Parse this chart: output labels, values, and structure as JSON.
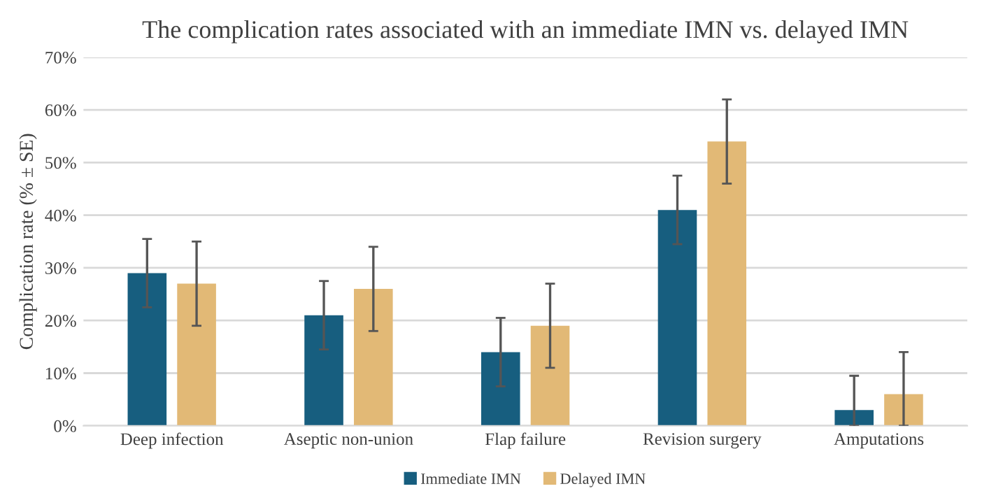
{
  "chart_data": {
    "type": "bar",
    "title": "The complication rates associated with an immediate IMN vs. delayed IMN",
    "ylabel": "Complication rate (% ± SE)",
    "categories": [
      "Deep infection",
      "Aseptic non-union",
      "Flap failure",
      "Revision surgery",
      "Amputations"
    ],
    "series": [
      {
        "name": "Immediate IMN",
        "color": "#175e7f",
        "values": [
          29,
          21,
          14,
          41,
          3
        ],
        "errors": [
          6.5,
          6.5,
          6.5,
          6.5,
          [
            0,
            9.5
          ]
        ]
      },
      {
        "name": "Delayed IMN",
        "color": "#e2b976",
        "values": [
          27,
          26,
          19,
          54,
          6
        ],
        "errors": [
          8,
          8,
          8,
          8,
          [
            0,
            14
          ]
        ]
      }
    ],
    "ylim": [
      0,
      70
    ],
    "yticks": [
      {
        "value": 0,
        "label": "0%"
      },
      {
        "value": 10,
        "label": "10%"
      },
      {
        "value": 20,
        "label": "20%"
      },
      {
        "value": 30,
        "label": "30%"
      },
      {
        "value": 40,
        "label": "40%"
      },
      {
        "value": 50,
        "label": "50%"
      },
      {
        "value": 60,
        "label": "60%"
      },
      {
        "value": 70,
        "label": "70%"
      }
    ],
    "grid": "y",
    "legend": "bottom"
  }
}
